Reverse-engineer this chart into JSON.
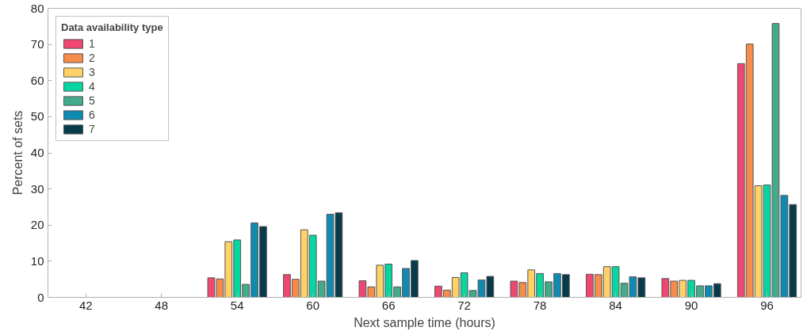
{
  "chart_data": {
    "type": "bar",
    "xlabel": "Next sample time (hours)",
    "ylabel": "Percent of sets",
    "legend_title": "Data availability type",
    "legend": "top left",
    "grid": false,
    "categories": [
      "42",
      "48",
      "54",
      "60",
      "66",
      "72",
      "78",
      "84",
      "90",
      "96"
    ],
    "ylim": [
      0,
      80
    ],
    "yticks": [
      0,
      10,
      20,
      30,
      40,
      50,
      60,
      70,
      80
    ],
    "series": [
      {
        "name": "1",
        "color": "#ef476f",
        "values": [
          null,
          null,
          5.4,
          6.3,
          4.6,
          3.1,
          4.5,
          6.4,
          5.2,
          64.7
        ]
      },
      {
        "name": "2",
        "color": "#f78c4b",
        "values": [
          null,
          null,
          5.1,
          5.0,
          2.9,
          2.0,
          4.1,
          6.3,
          4.5,
          70.1
        ]
      },
      {
        "name": "3",
        "color": "#ffd166",
        "values": [
          null,
          null,
          15.4,
          18.7,
          8.9,
          5.5,
          7.6,
          8.5,
          4.7,
          30.9
        ]
      },
      {
        "name": "4",
        "color": "#06d6a0",
        "values": [
          null,
          null,
          15.9,
          17.2,
          9.2,
          6.8,
          6.6,
          8.5,
          4.7,
          31.1
        ]
      },
      {
        "name": "5",
        "color": "#43aa8b",
        "values": [
          null,
          null,
          3.6,
          4.5,
          2.9,
          1.9,
          4.3,
          3.9,
          3.2,
          75.8
        ]
      },
      {
        "name": "6",
        "color": "#118ab2",
        "values": [
          null,
          null,
          20.6,
          23.0,
          8.0,
          4.8,
          6.6,
          5.7,
          3.2,
          28.2
        ]
      },
      {
        "name": "7",
        "color": "#073b4c",
        "values": [
          null,
          null,
          19.6,
          23.4,
          10.2,
          5.8,
          6.3,
          5.4,
          3.8,
          25.7
        ]
      }
    ]
  }
}
